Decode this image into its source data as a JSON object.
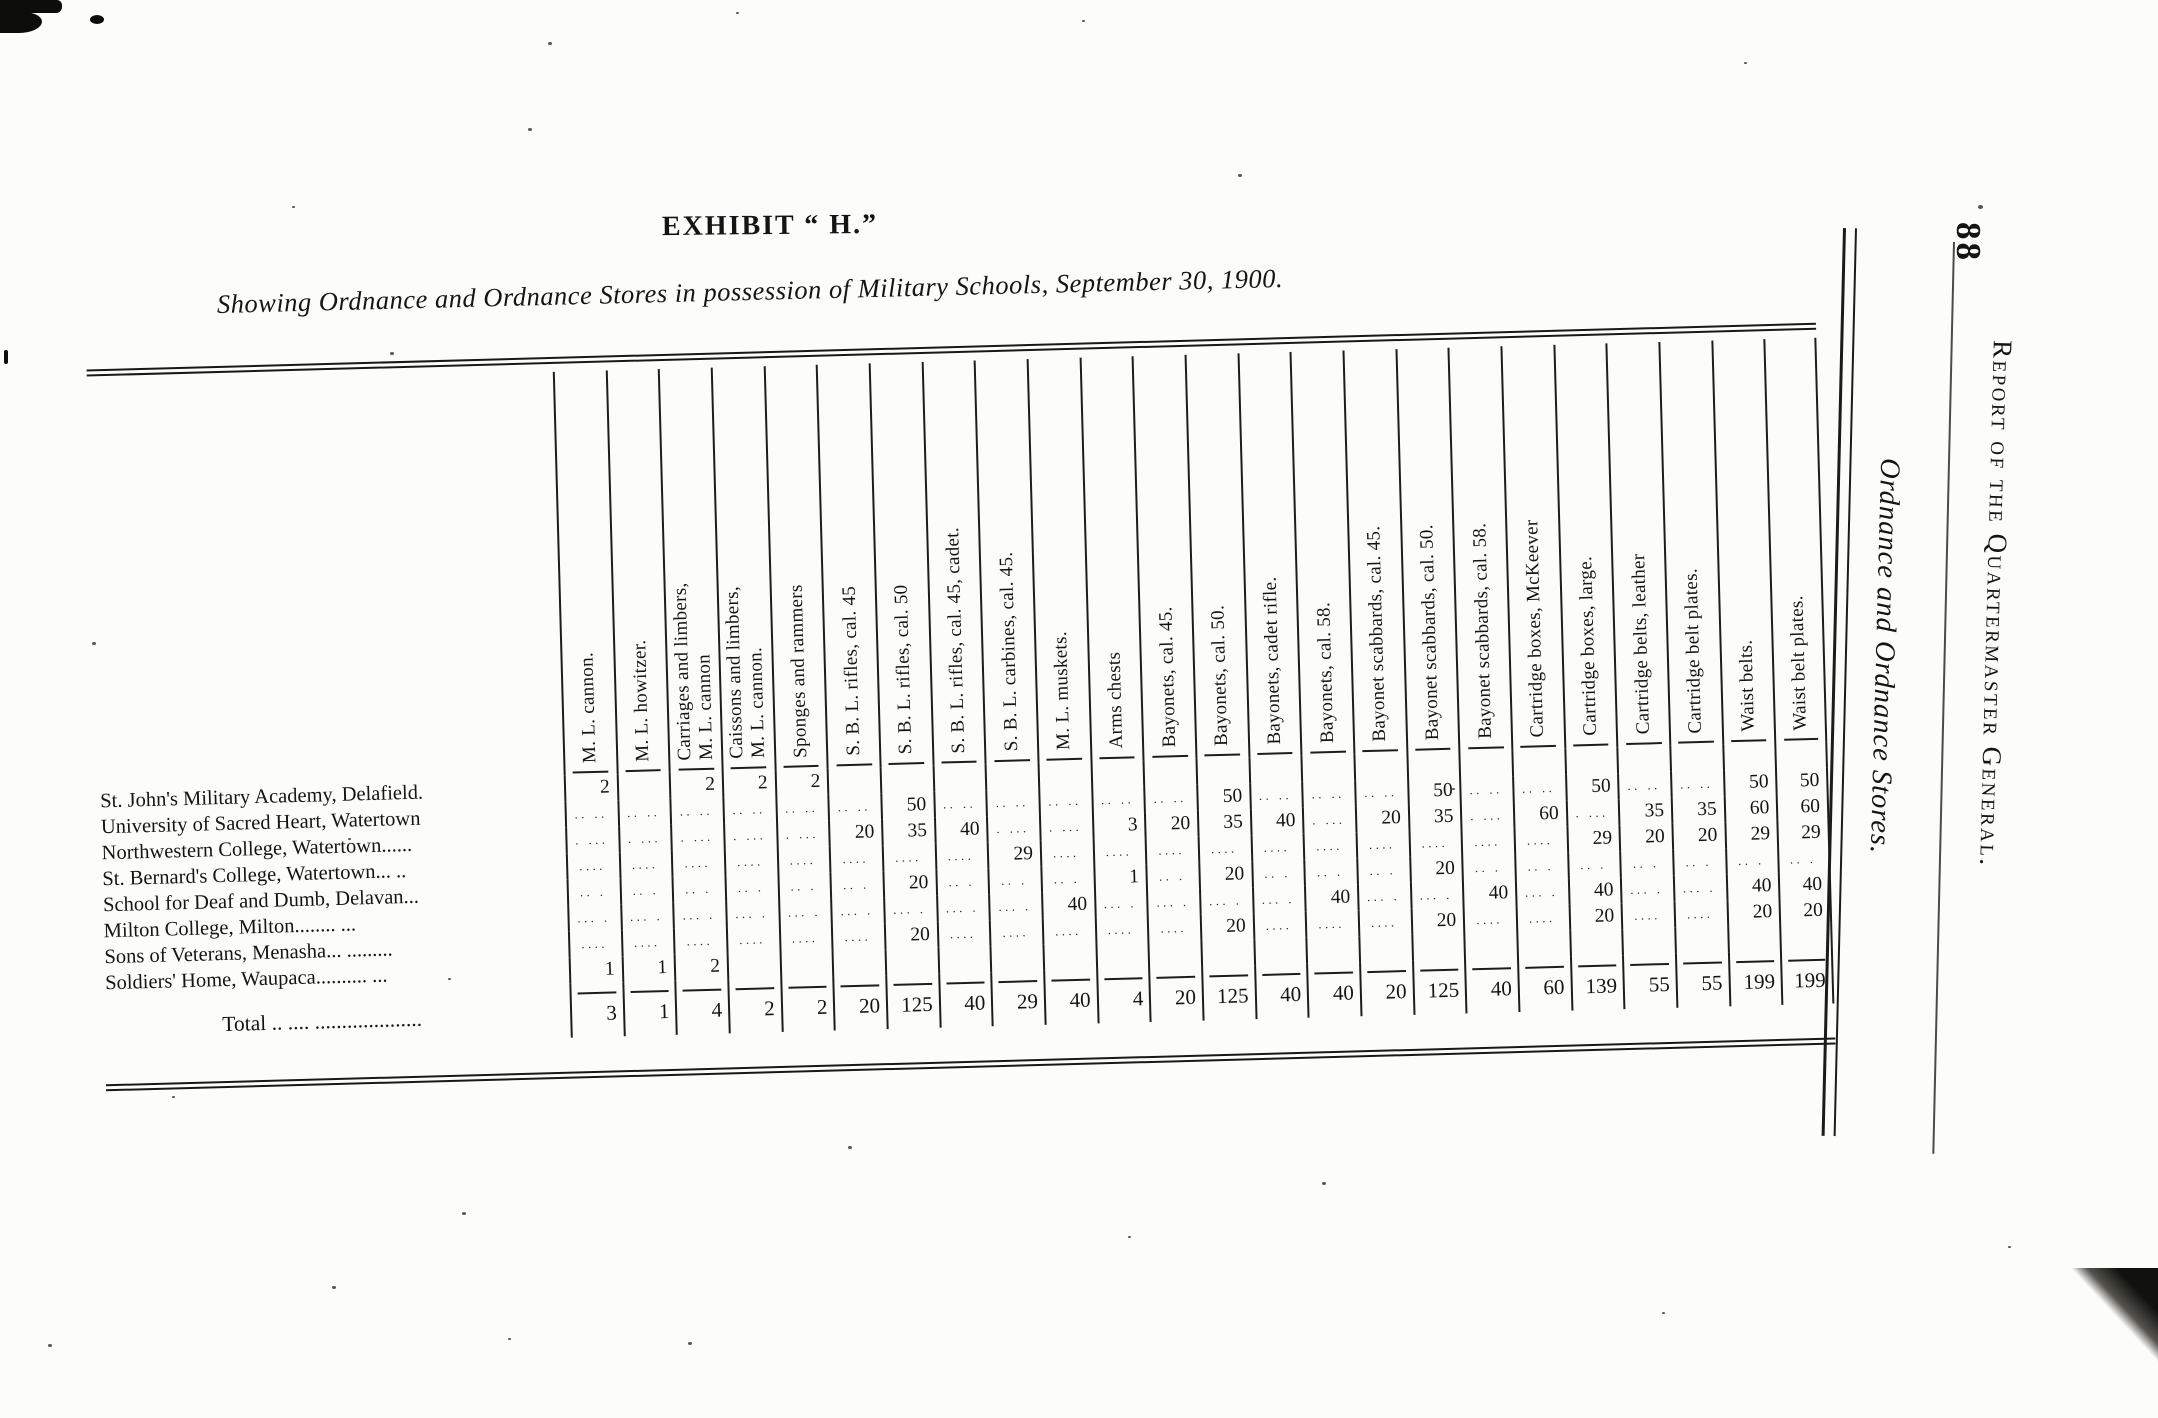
{
  "page": {
    "number": "88",
    "margin_vertical_outer": "Report of the Quartermaster General.",
    "margin_vertical_inner": "Ordnance and Ordnance Stores."
  },
  "exhibit": {
    "title": "EXHIBIT “ H.”",
    "subtitle": "Showing Ordnance and Ordnance Stores in possession of Military Schools, September 30, 1900."
  },
  "table": {
    "columns": [
      "M. L. cannon.",
      "M. L. howitzer.",
      "Carriages and limbers,\nM. L. cannon",
      "Caissons and limbers,\nM. L. cannon.",
      "Sponges and rammers",
      "S. B. L. rifles, cal. 45",
      "S. B. L. rifles, cal. 50",
      "S. B. L. rifles, cal. 45, cadet.",
      "S. B. L. carbines, cal. 45.",
      "M. L. muskets.",
      "Arms chests",
      "Bayonets, cal. 45.",
      "Bayonets, cal. 50.",
      "Bayonets, cadet rifle.",
      "Bayonets, cal. 58.",
      "Bayonet scabbards, cal. 45.",
      "Bayonet scabbards, cal. 50.",
      "Bayonet scabbards, cal. 58.",
      "Cartridge boxes, McKeever",
      "Cartridge boxes, large.",
      "Cartridge belts, leather",
      "Cartridge belt plates.",
      "Waist belts.",
      "Waist belt plates."
    ],
    "rows": [
      {
        "label": "St. John's Military Academy, Delafield.",
        "values": [
          "2",
          "",
          "2",
          "2",
          "2",
          "",
          "",
          "",
          "",
          "",
          "",
          "",
          "",
          "",
          "",
          "",
          "",
          "",
          "",
          "",
          "",
          "",
          "",
          ""
        ]
      },
      {
        "label": "University of Sacred Heart, Watertown",
        "values": [
          "",
          "",
          "",
          "",
          "",
          "",
          "50",
          "",
          "",
          "",
          "",
          "",
          "50",
          "",
          "",
          "",
          "50",
          "",
          "",
          "50",
          "",
          "",
          "50",
          "50"
        ]
      },
      {
        "label": "Northwestern College, Watertown......",
        "values": [
          "",
          "",
          "",
          "",
          "",
          "20",
          "35",
          "40",
          "",
          "",
          "3",
          "20",
          "35",
          "40",
          "",
          "20",
          "35",
          "",
          "60",
          "",
          "35",
          "35",
          "60",
          "60"
        ]
      },
      {
        "label": "St. Bernard's College, Watertown... ..",
        "values": [
          "",
          "",
          "",
          "",
          "",
          "",
          "",
          "",
          "29",
          "",
          "",
          "",
          "",
          "",
          "",
          "",
          "",
          "",
          "",
          "29",
          "20",
          "20",
          "29",
          "29"
        ]
      },
      {
        "label": "School for Deaf and Dumb, Delavan...",
        "values": [
          "",
          "",
          "",
          "",
          "",
          "",
          "20",
          "",
          "",
          "",
          "1",
          "",
          "20",
          "",
          "",
          "",
          "20",
          "",
          "",
          "",
          "",
          "",
          "",
          ""
        ]
      },
      {
        "label": "Milton College, Milton........ ...",
        "values": [
          "",
          "",
          "",
          "",
          "",
          "",
          "",
          "",
          "",
          "40",
          "",
          "",
          "",
          "",
          "40",
          "",
          "",
          "40",
          "",
          "40",
          "",
          "",
          "40",
          "40"
        ]
      },
      {
        "label": "Sons of Veterans, Menasha... .........",
        "values": [
          "",
          "",
          "",
          "",
          "",
          "",
          "20",
          "",
          "",
          "",
          "",
          "",
          "20",
          "",
          "",
          "",
          "20",
          "",
          "",
          "20",
          "",
          "",
          "20",
          "20"
        ]
      },
      {
        "label": "Soldiers' Home, Waupaca.......... ...",
        "values": [
          "1",
          "1",
          "2",
          "",
          "",
          "",
          "",
          "",
          "",
          "",
          "",
          "",
          "",
          "",
          "",
          "",
          "",
          "",
          "",
          "",
          "",
          "",
          "",
          ""
        ]
      }
    ],
    "total": {
      "label": "Total .. ....  ....................",
      "values": [
        "3",
        "1",
        "4",
        "2",
        "2",
        "20",
        "125",
        "40",
        "29",
        "40",
        "4",
        "20",
        "125",
        "40",
        "40",
        "20",
        "125",
        "40",
        "60",
        "139",
        "55",
        "55",
        "199",
        "199"
      ]
    }
  }
}
